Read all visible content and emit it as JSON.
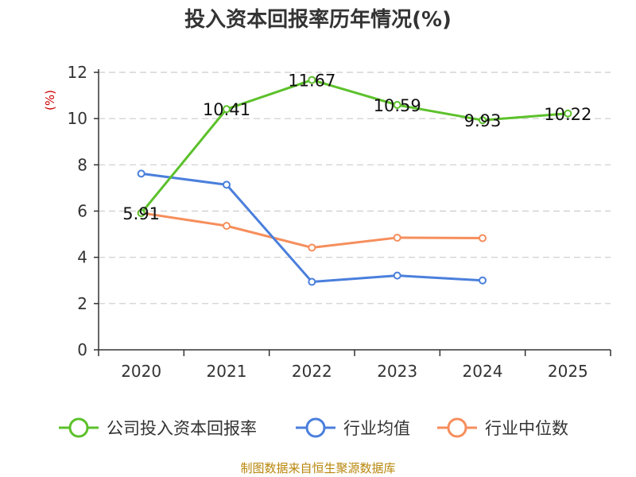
{
  "chart_data": {
    "type": "line",
    "title": "投入资本回报率历年情况(%)",
    "ylabel": "(%)",
    "categories": [
      "2020",
      "2021",
      "2022",
      "2023",
      "2024",
      "2025"
    ],
    "ylim": [
      0,
      12
    ],
    "yticks": [
      0,
      2,
      4,
      6,
      8,
      10,
      12
    ],
    "grid": true,
    "legend_position": "bottom",
    "series": [
      {
        "name": "公司投入资本回报率",
        "color": "#5cc12b",
        "values": [
          5.91,
          10.41,
          11.67,
          10.59,
          9.93,
          10.22
        ],
        "labels": [
          "5.91",
          "10.41",
          "11.67",
          "10.59",
          "9.93",
          "10.22"
        ]
      },
      {
        "name": "行业均值",
        "color": "#4a7fdc",
        "values": [
          7.62,
          7.14,
          2.94,
          3.21,
          3.0,
          null
        ]
      },
      {
        "name": "行业中位数",
        "color": "#f68e5c",
        "values": [
          5.92,
          5.36,
          4.42,
          4.85,
          4.83,
          null
        ]
      }
    ],
    "source": "制图数据来自恒生聚源数据库"
  }
}
